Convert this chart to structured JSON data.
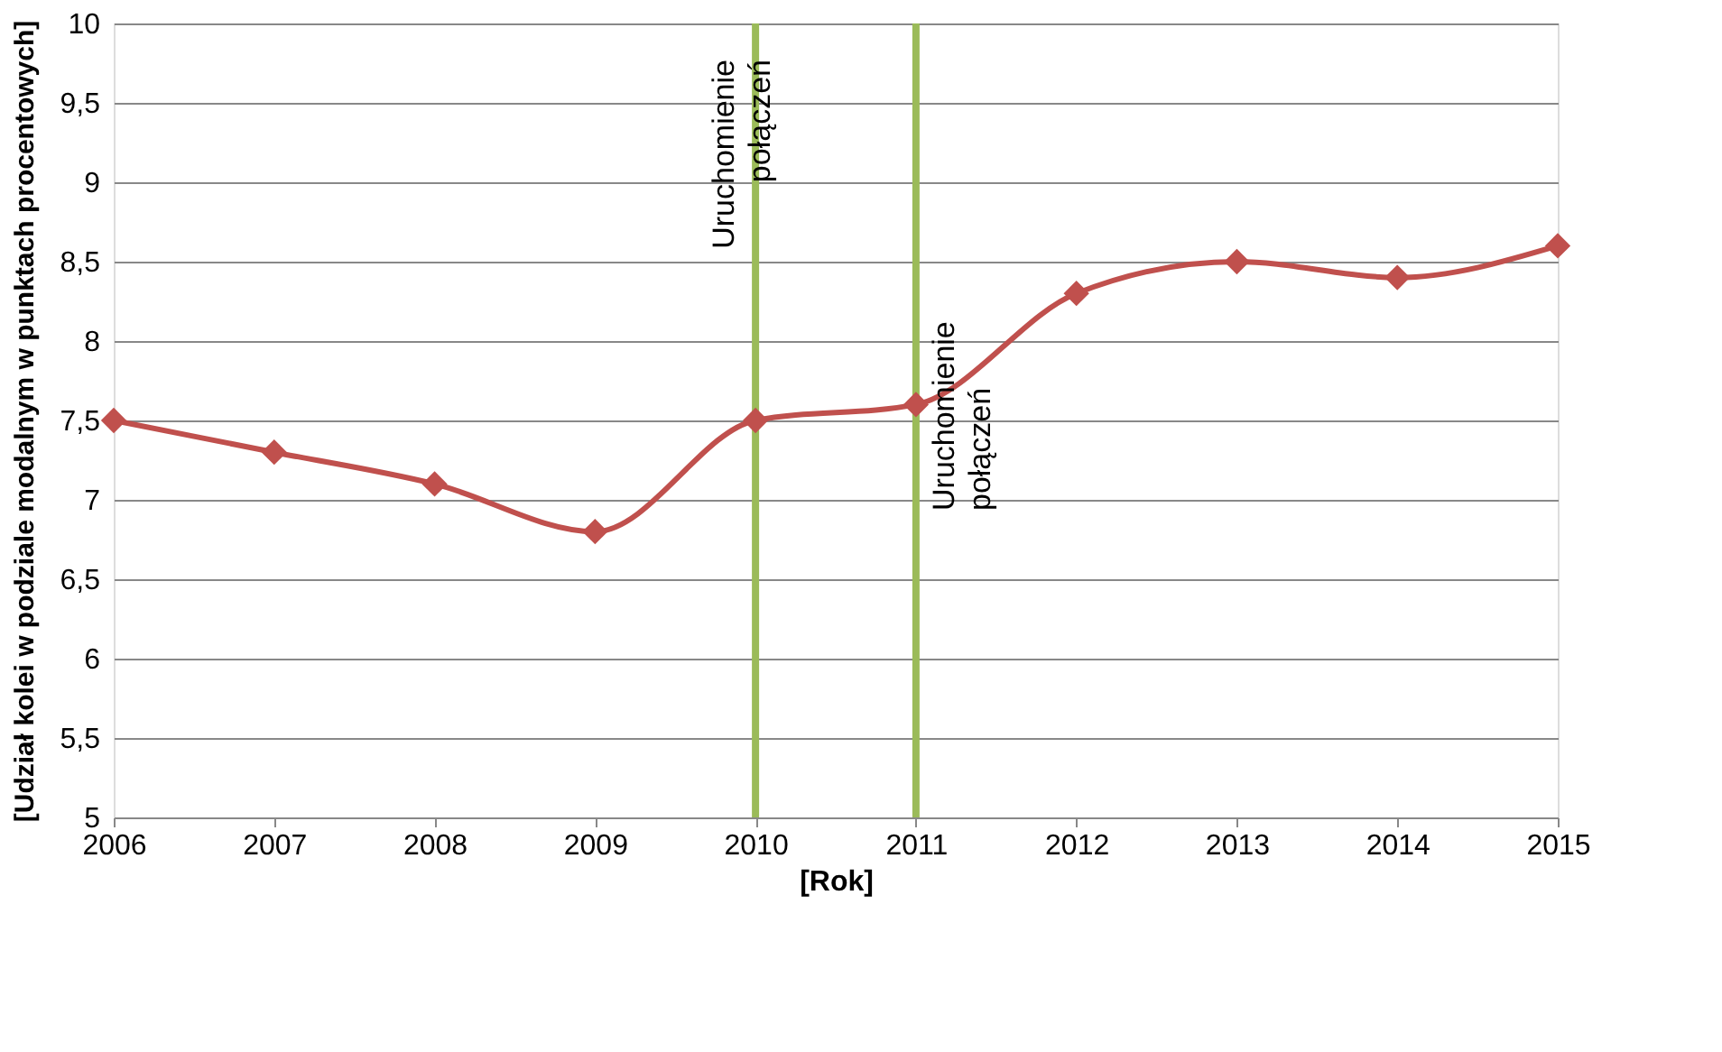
{
  "chart_data": {
    "type": "line",
    "xlabel": "[Rok]",
    "ylabel": "[Udział kolei w podziale modalnym w punktach procentowych]",
    "x": [
      2006,
      2007,
      2008,
      2009,
      2010,
      2011,
      2012,
      2013,
      2014,
      2015
    ],
    "series": [
      {
        "color": "#c0504d",
        "values": [
          7.5,
          7.3,
          7.1,
          6.8,
          7.5,
          7.6,
          8.3,
          8.5,
          8.4,
          8.6
        ]
      }
    ],
    "xlim": [
      2006,
      2015
    ],
    "xticks": [
      2006,
      2007,
      2008,
      2009,
      2010,
      2011,
      2012,
      2013,
      2014,
      2015
    ],
    "ylim": [
      5,
      10
    ],
    "yticks": [
      5,
      {
        "value": 5.5,
        "label": "5,5"
      },
      6,
      {
        "value": 6.5,
        "label": "6,5"
      },
      7,
      {
        "value": 7.5,
        "label": "7,5"
      },
      8,
      {
        "value": 8.5,
        "label": "8,5"
      },
      9,
      {
        "value": 9.5,
        "label": "9,5"
      },
      10
    ],
    "ref_lines": [
      {
        "axis": "x",
        "value": 2010,
        "label": "Uruchomienie połączeń",
        "color": "#9bbb59"
      },
      {
        "axis": "x",
        "value": 2011,
        "label": "Uruchomienie połączeń",
        "color": "#9bbb59"
      }
    ],
    "grid": "y",
    "marker": "diamond",
    "line_style": "solid"
  }
}
